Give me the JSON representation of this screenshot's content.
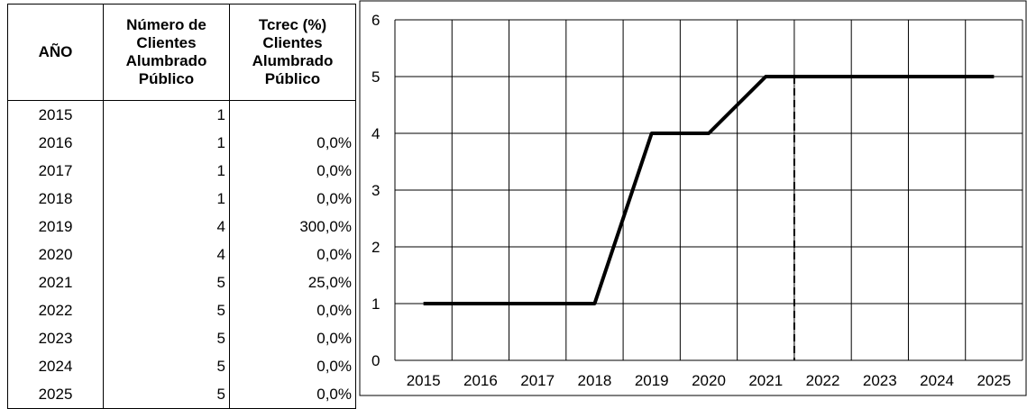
{
  "table": {
    "headers": [
      "AÑO",
      "Número de Clientes Alumbrado Público",
      "Tcrec (%) Clientes Alumbrado Público"
    ],
    "rows": [
      {
        "year": "2015",
        "clients": "1",
        "growth": ""
      },
      {
        "year": "2016",
        "clients": "1",
        "growth": "0,0%"
      },
      {
        "year": "2017",
        "clients": "1",
        "growth": "0,0%"
      },
      {
        "year": "2018",
        "clients": "1",
        "growth": "0,0%"
      },
      {
        "year": "2019",
        "clients": "4",
        "growth": "300,0%"
      },
      {
        "year": "2020",
        "clients": "4",
        "growth": "0,0%"
      },
      {
        "year": "2021",
        "clients": "5",
        "growth": "25,0%"
      },
      {
        "year": "2022",
        "clients": "5",
        "growth": "0,0%"
      },
      {
        "year": "2023",
        "clients": "5",
        "growth": "0,0%"
      },
      {
        "year": "2024",
        "clients": "5",
        "growth": "0,0%"
      },
      {
        "year": "2025",
        "clients": "5",
        "growth": "0,0%"
      }
    ]
  },
  "chart_data": {
    "type": "line",
    "title": "",
    "xlabel": "",
    "ylabel": "",
    "x": [
      "2015",
      "2016",
      "2017",
      "2018",
      "2019",
      "2020",
      "2021",
      "2022",
      "2023",
      "2024",
      "2025"
    ],
    "series": [
      {
        "values": [
          1,
          1,
          1,
          1,
          4,
          4,
          5,
          5,
          5,
          5,
          5
        ]
      }
    ],
    "ylim": [
      0,
      6
    ],
    "yticks": [
      "0",
      "1",
      "2",
      "3",
      "4",
      "5",
      "6"
    ],
    "grid": true,
    "legend": "none",
    "dashed_divider_between": [
      "2021",
      "2022"
    ],
    "line_color": "#000000"
  }
}
